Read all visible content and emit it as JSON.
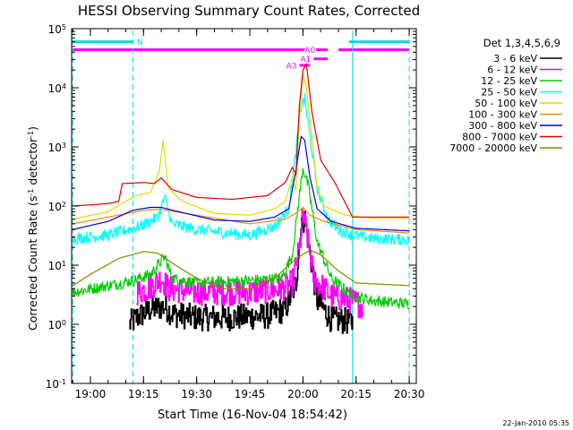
{
  "chart_data": {
    "type": "line",
    "title": "HESSI Observing Summary Count Rates, Corrected",
    "xlabel": "Start Time (16-Nov-04 18:54:42)",
    "ylabel_parts": [
      "Corrected Count Rate (s",
      "-1",
      " detector",
      "-1",
      ")"
    ],
    "yscale": "log",
    "ylim": [
      0.1,
      100000
    ],
    "xlim": [
      "18:54:42",
      "20:32:00"
    ],
    "x_ticks": [
      "19:00",
      "19:15",
      "19:30",
      "19:45",
      "20:00",
      "20:15",
      "20:30"
    ],
    "y_ticks": [
      {
        "value": 0.1,
        "base": "10",
        "exp": "-1"
      },
      {
        "value": 1,
        "base": "10",
        "exp": "0"
      },
      {
        "value": 10,
        "base": "10",
        "exp": "1"
      },
      {
        "value": 100,
        "base": "10",
        "exp": "2"
      },
      {
        "value": 1000,
        "base": "10",
        "exp": "3"
      },
      {
        "value": 10000,
        "base": "10",
        "exp": "4"
      },
      {
        "value": 100000,
        "base": "10",
        "exp": "5"
      }
    ],
    "legend_title": "Det 1,3,4,5,6,9",
    "legend_position": "right",
    "series": [
      {
        "name": "3 - 6 keV",
        "color": "#000000",
        "noisy": true,
        "step": true,
        "points": [
          [
            "19:11",
            1.0
          ],
          [
            "19:13",
            1.3
          ],
          [
            "19:17",
            1.8
          ],
          [
            "19:21",
            2.0
          ],
          [
            "19:23",
            1.5
          ],
          [
            "19:30",
            1.3
          ],
          [
            "19:40",
            1.3
          ],
          [
            "19:50",
            1.4
          ],
          [
            "19:55",
            1.8
          ],
          [
            "19:58",
            5
          ],
          [
            "19:59.5",
            55
          ],
          [
            "20:00.5",
            60
          ],
          [
            "20:02",
            15
          ],
          [
            "20:04",
            2.5
          ],
          [
            "20:08",
            1.2
          ],
          [
            "20:14",
            1.1
          ]
        ]
      },
      {
        "name": "6 - 12 keV",
        "color": "#ff00ff",
        "noisy": true,
        "step": true,
        "points": [
          [
            "19:13",
            3.5
          ],
          [
            "19:16",
            4
          ],
          [
            "19:20",
            6
          ],
          [
            "19:22",
            4
          ],
          [
            "19:30",
            3.5
          ],
          [
            "19:45",
            3.5
          ],
          [
            "19:54",
            4
          ],
          [
            "19:57",
            5
          ],
          [
            "19:59",
            20
          ],
          [
            "20:00",
            70
          ],
          [
            "20:01",
            35
          ],
          [
            "20:03",
            6
          ],
          [
            "20:08",
            3
          ],
          [
            "20:14",
            2.5
          ],
          [
            "20:17",
            2.0
          ]
        ]
      },
      {
        "name": "12 - 25 keV",
        "color": "#00cc00",
        "noisy": true,
        "step": false,
        "points": [
          [
            "18:55",
            3.5
          ],
          [
            "19:05",
            4.5
          ],
          [
            "19:12",
            5.5
          ],
          [
            "19:17",
            7
          ],
          [
            "19:21",
            14
          ],
          [
            "19:23",
            6
          ],
          [
            "19:30",
            5
          ],
          [
            "19:45",
            5.5
          ],
          [
            "19:54",
            6
          ],
          [
            "19:57",
            15
          ],
          [
            "19:59",
            150
          ],
          [
            "20:00",
            450
          ],
          [
            "20:01.5",
            220
          ],
          [
            "20:04",
            25
          ],
          [
            "20:08",
            6
          ],
          [
            "20:14",
            3
          ],
          [
            "20:20",
            2.5
          ],
          [
            "20:30",
            2.2
          ]
        ]
      },
      {
        "name": "25 - 50 keV",
        "color": "#00ffff",
        "noisy": true,
        "step": false,
        "points": [
          [
            "18:55",
            28
          ],
          [
            "19:05",
            32
          ],
          [
            "19:12",
            42
          ],
          [
            "19:15",
            48
          ],
          [
            "19:19",
            65
          ],
          [
            "19:21",
            140
          ],
          [
            "19:23",
            50
          ],
          [
            "19:30",
            40
          ],
          [
            "19:45",
            32
          ],
          [
            "19:52",
            45
          ],
          [
            "19:56",
            90
          ],
          [
            "19:58",
            800
          ],
          [
            "19:59.5",
            5000
          ],
          [
            "20:00.5",
            6500
          ],
          [
            "20:02",
            1500
          ],
          [
            "20:04",
            200
          ],
          [
            "20:07",
            60
          ],
          [
            "20:10",
            40
          ],
          [
            "20:14",
            32
          ],
          [
            "20:20",
            28
          ],
          [
            "20:30",
            27
          ]
        ]
      },
      {
        "name": "50 - 100 keV",
        "color": "#dddd00",
        "noisy": false,
        "step": false,
        "points": [
          [
            "18:55",
            60
          ],
          [
            "19:05",
            80
          ],
          [
            "19:10",
            120
          ],
          [
            "19:13",
            150
          ],
          [
            "19:17",
            170
          ],
          [
            "19:19.5",
            400
          ],
          [
            "19:20.5",
            1300
          ],
          [
            "19:22",
            200
          ],
          [
            "19:26",
            120
          ],
          [
            "19:35",
            75
          ],
          [
            "19:45",
            70
          ],
          [
            "19:52",
            90
          ],
          [
            "19:55",
            120
          ],
          [
            "19:57",
            300
          ],
          [
            "19:58",
            180
          ],
          [
            "19:59",
            3000
          ],
          [
            "20:00",
            17000
          ],
          [
            "20:01",
            10000
          ],
          [
            "20:02.5",
            1500
          ],
          [
            "20:04",
            200
          ],
          [
            "20:06",
            100
          ],
          [
            "20:12",
            70
          ],
          [
            "20:20",
            62
          ],
          [
            "20:30",
            62
          ]
        ]
      },
      {
        "name": "100 - 300 keV",
        "color": "#ff8800",
        "noisy": false,
        "step": false,
        "points": [
          [
            "18:55",
            50
          ],
          [
            "19:05",
            65
          ],
          [
            "19:15",
            85
          ],
          [
            "19:20",
            88
          ],
          [
            "19:30",
            70
          ],
          [
            "19:45",
            50
          ],
          [
            "19:55",
            60
          ],
          [
            "19:58",
            75
          ],
          [
            "20:00",
            95
          ],
          [
            "20:02",
            70
          ],
          [
            "20:06",
            55
          ],
          [
            "20:15",
            40
          ],
          [
            "20:30",
            35
          ]
        ]
      },
      {
        "name": "300 - 800 keV",
        "color": "#0000dd",
        "noisy": false,
        "step": false,
        "points": [
          [
            "18:55",
            40
          ],
          [
            "19:05",
            55
          ],
          [
            "19:12",
            85
          ],
          [
            "19:17",
            95
          ],
          [
            "19:20",
            95
          ],
          [
            "19:25",
            80
          ],
          [
            "19:35",
            58
          ],
          [
            "19:45",
            55
          ],
          [
            "19:52",
            65
          ],
          [
            "19:56",
            90
          ],
          [
            "19:58",
            400
          ],
          [
            "19:59.5",
            1500
          ],
          [
            "20:00.5",
            1300
          ],
          [
            "20:02",
            300
          ],
          [
            "20:04",
            90
          ],
          [
            "20:08",
            55
          ],
          [
            "20:15",
            42
          ],
          [
            "20:30",
            38
          ]
        ]
      },
      {
        "name": "800 - 7000 keV",
        "color": "#dd0000",
        "noisy": false,
        "step": false,
        "points": [
          [
            "18:55",
            100
          ],
          [
            "19:05",
            110
          ],
          [
            "19:08",
            120
          ],
          [
            "19:09",
            240
          ],
          [
            "19:15",
            250
          ],
          [
            "19:18",
            240
          ],
          [
            "19:20",
            300
          ],
          [
            "19:23",
            190
          ],
          [
            "19:30",
            140
          ],
          [
            "19:40",
            130
          ],
          [
            "19:50",
            150
          ],
          [
            "19:55",
            250
          ],
          [
            "19:57",
            450
          ],
          [
            "19:58",
            350
          ],
          [
            "19:59",
            5000
          ],
          [
            "20:00",
            20000
          ],
          [
            "20:01",
            25000
          ],
          [
            "20:02.5",
            4000
          ],
          [
            "20:05",
            600
          ],
          [
            "20:09",
            250
          ],
          [
            "20:14",
            65
          ],
          [
            "20:20",
            65
          ],
          [
            "20:30",
            65
          ]
        ]
      },
      {
        "name": "7000 - 20000 keV",
        "color": "#888800",
        "noisy": false,
        "step": false,
        "points": [
          [
            "18:55",
            4.5
          ],
          [
            "19:00",
            7
          ],
          [
            "19:08",
            13
          ],
          [
            "19:15",
            17
          ],
          [
            "19:19",
            16
          ],
          [
            "19:24",
            10
          ],
          [
            "19:30",
            6
          ],
          [
            "19:37",
            4
          ],
          [
            "19:45",
            4
          ],
          [
            "19:52",
            6
          ],
          [
            "19:56",
            10
          ],
          [
            "19:59",
            14
          ],
          [
            "20:02",
            18
          ],
          [
            "20:05",
            15
          ],
          [
            "20:10",
            8
          ],
          [
            "20:15",
            5
          ],
          [
            "20:30",
            4.5
          ]
        ]
      }
    ],
    "flags": [
      {
        "label": "N",
        "color": "#00dddd",
        "segments": [
          [
            "18:55",
            "19:12"
          ],
          [
            "20:13",
            "20:30"
          ]
        ],
        "level": 60000
      },
      {
        "label": "A0",
        "color": "#ff00ff",
        "segments": [
          [
            "18:55",
            "20:07"
          ],
          [
            "20:10",
            "20:30"
          ]
        ],
        "level": 44000
      },
      {
        "label": "A1",
        "color": "#ff00ff",
        "segments": [
          [
            "20:03",
            "20:07"
          ]
        ],
        "level": 31000
      },
      {
        "label": "A3",
        "color": "#ff00ff",
        "segments": [
          [
            "19:59",
            "20:02"
          ]
        ],
        "level": 24000
      }
    ],
    "vlines": [
      {
        "time": "19:12",
        "style": "dashed",
        "color": "#00dddd"
      },
      {
        "time": "20:14",
        "style": "solid",
        "color": "#00dddd"
      },
      {
        "time": "18:55",
        "style": "dashed",
        "color": "#00dddd"
      },
      {
        "time": "20:30",
        "style": "dashed",
        "color": "#00dddd"
      }
    ],
    "timestamp": "22-Jan-2010 05:35"
  }
}
